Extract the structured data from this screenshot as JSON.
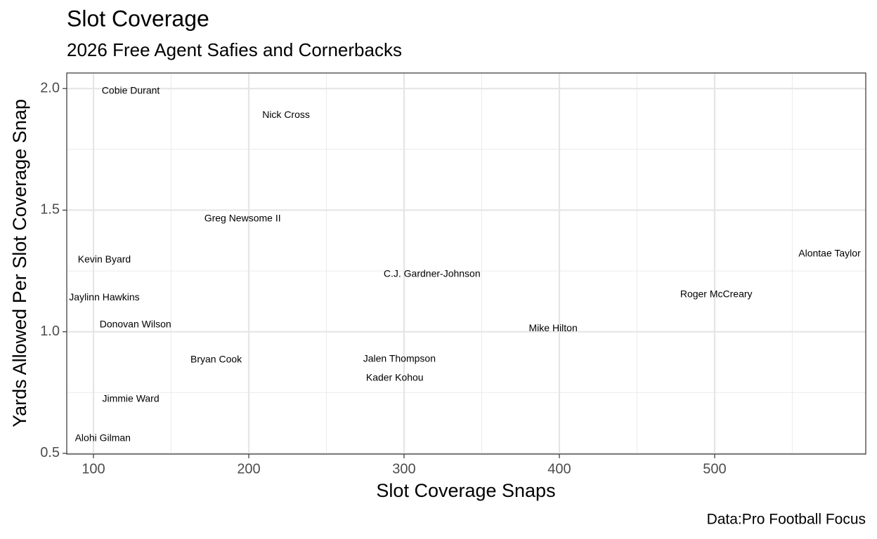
{
  "chart_data": {
    "type": "text_scatter",
    "title": "Slot Coverage",
    "subtitle": "2026 Free Agent Safies and Cornerbacks",
    "x_label": "Slot Coverage Snaps",
    "y_label": "Yards Allowed Per Slot Coverage Snap",
    "caption": "Data:Pro Football Focus",
    "labels": [
      "Cobie Durant",
      "Nick Cross",
      "Greg Newsome II",
      "Kevin Byard",
      "Alontae Taylor",
      "C.J. Gardner-Johnson",
      "Roger McCreary",
      "Jaylinn Hawkins",
      "Donovan Wilson",
      "Mike Hilton",
      "Bryan Cook",
      "Jalen Thompson",
      "Kader Kohou",
      "Jimmie Ward",
      "Alohi Gilman"
    ],
    "x": [
      124,
      224,
      196,
      107,
      574,
      318,
      501,
      107,
      127,
      396,
      179,
      297,
      294,
      124,
      106
    ],
    "values": [
      1.99,
      1.89,
      1.465,
      1.295,
      1.32,
      1.237,
      1.153,
      1.139,
      1.029,
      1.012,
      0.884,
      0.887,
      0.809,
      0.722,
      0.561
    ],
    "xlim": [
      82.8,
      597.3
    ],
    "ylim": [
      0.497,
      2.064
    ],
    "xticks": [
      100,
      200,
      300,
      400,
      500
    ],
    "yticks": [
      {
        "value": 0.5,
        "label": "0.5"
      },
      {
        "value": 1,
        "label": "1.0"
      },
      {
        "value": 1.5,
        "label": "1.5"
      },
      {
        "value": 2,
        "label": "2.0"
      }
    ],
    "xminor": [
      150,
      250,
      350,
      450,
      550
    ],
    "yminor": [
      0.75,
      1.25,
      1.75
    ],
    "grid": true
  }
}
